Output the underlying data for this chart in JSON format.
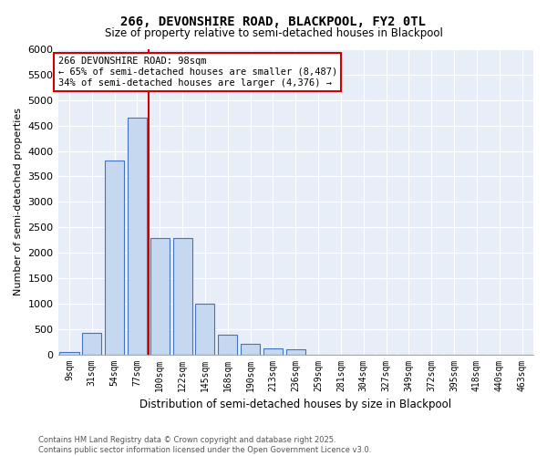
{
  "title": "266, DEVONSHIRE ROAD, BLACKPOOL, FY2 0TL",
  "subtitle": "Size of property relative to semi-detached houses in Blackpool",
  "xlabel": "Distribution of semi-detached houses by size in Blackpool",
  "ylabel": "Number of semi-detached properties",
  "categories": [
    "9sqm",
    "31sqm",
    "54sqm",
    "77sqm",
    "100sqm",
    "122sqm",
    "145sqm",
    "168sqm",
    "190sqm",
    "213sqm",
    "236sqm",
    "259sqm",
    "281sqm",
    "304sqm",
    "327sqm",
    "349sqm",
    "372sqm",
    "395sqm",
    "418sqm",
    "440sqm",
    "463sqm"
  ],
  "values": [
    50,
    430,
    3820,
    4650,
    2280,
    2280,
    1000,
    390,
    200,
    110,
    100,
    0,
    0,
    0,
    0,
    0,
    0,
    0,
    0,
    0,
    0
  ],
  "bar_color": "#c5d8f0",
  "bar_edge_color": "#4472c4",
  "vline_position": 3.5,
  "vline_color": "#cc0000",
  "annotation_text": "266 DEVONSHIRE ROAD: 98sqm\n← 65% of semi-detached houses are smaller (8,487)\n34% of semi-detached houses are larger (4,376) →",
  "annotation_box_color": "#cc0000",
  "ylim": [
    0,
    6000
  ],
  "yticks": [
    0,
    500,
    1000,
    1500,
    2000,
    2500,
    3000,
    3500,
    4000,
    4500,
    5000,
    5500,
    6000
  ],
  "background_color": "#e8eef8",
  "grid_color": "#ffffff",
  "footer_line1": "Contains HM Land Registry data © Crown copyright and database right 2025.",
  "footer_line2": "Contains public sector information licensed under the Open Government Licence v3.0."
}
